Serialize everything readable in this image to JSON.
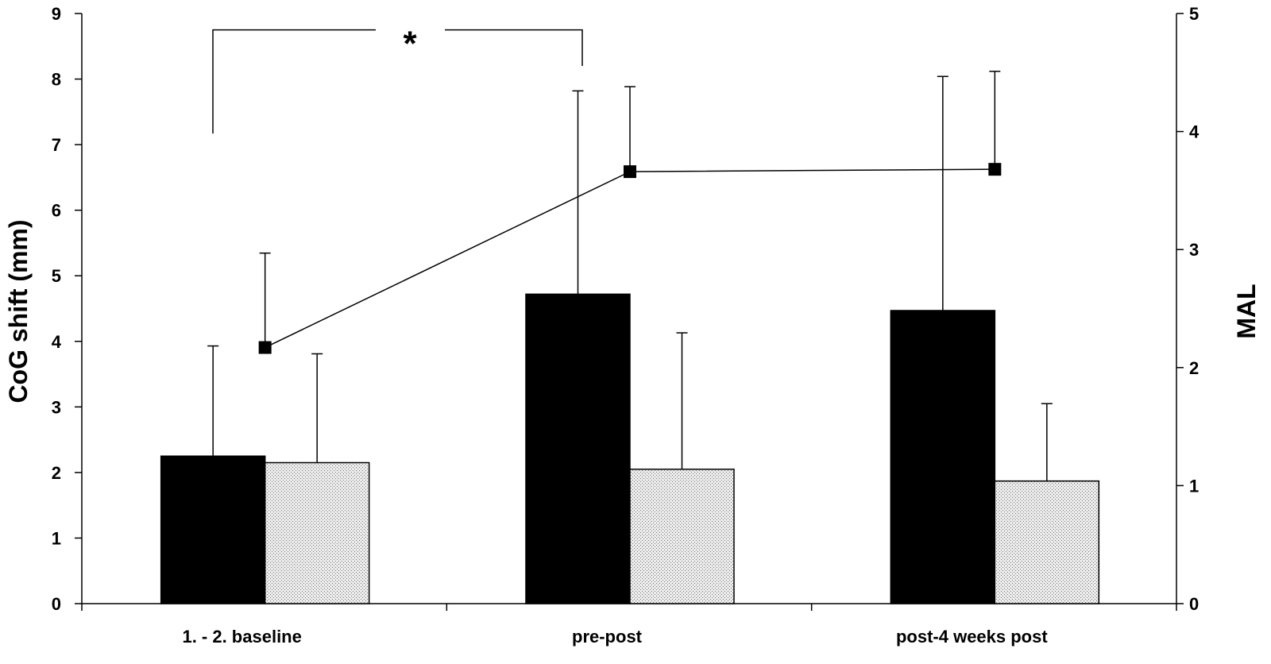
{
  "chart_data": {
    "type": "bar",
    "categories": [
      "1. - 2. baseline",
      "pre-post",
      "post-4 weeks post"
    ],
    "ylabel": "CoG shift (mm)",
    "y2label": "MAL",
    "ylim": [
      0,
      9
    ],
    "y2lim": [
      0,
      5
    ],
    "yticks": [
      "0",
      "1",
      "2",
      "3",
      "4",
      "5",
      "6",
      "7",
      "8",
      "9"
    ],
    "y2ticks": [
      "0",
      "1",
      "2",
      "3",
      "4",
      "5"
    ],
    "series": [
      {
        "type": "bar",
        "axis": "left",
        "fill": "solid",
        "color": "#000000",
        "values": [
          2.25,
          4.72,
          4.47
        ],
        "errors": [
          1.68,
          3.1,
          3.57
        ]
      },
      {
        "type": "bar",
        "axis": "left",
        "fill": "stippled",
        "color": "#e2e2e2",
        "values": [
          2.15,
          2.05,
          1.87
        ],
        "errors": [
          1.66,
          2.08,
          1.18
        ]
      },
      {
        "type": "line",
        "axis": "right",
        "marker": "square",
        "color": "#000000",
        "values": [
          2.17,
          3.66,
          3.68
        ],
        "errors": [
          0.8,
          0.72,
          0.83
        ]
      }
    ],
    "annotations": [
      {
        "text": "*",
        "type": "significance-bracket",
        "between": [
          "1. - 2. baseline",
          "pre-post"
        ]
      }
    ],
    "grid": false,
    "legend": "none"
  }
}
